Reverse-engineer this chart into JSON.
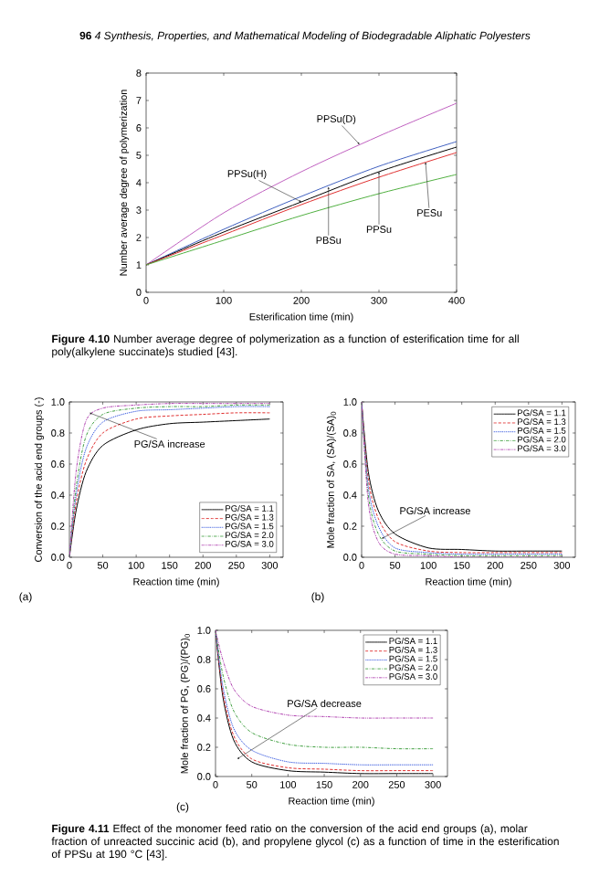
{
  "chart_data": [
    {
      "type": "line",
      "xlabel": "Esterification time (min)",
      "ylabel": "Number average degree of polymerization",
      "xlim": [
        0,
        400
      ],
      "ylim": [
        0,
        8
      ],
      "xticks": [
        0,
        100,
        200,
        300,
        400
      ],
      "yticks": [
        0,
        1,
        2,
        3,
        4,
        5,
        6,
        7,
        8
      ],
      "x": [
        0,
        100,
        200,
        300,
        400
      ],
      "series": [
        {
          "color": "#c060c0",
          "values": [
            1,
            2.9,
            4.4,
            5.7,
            6.9
          ]
        },
        {
          "color": "#4060c0",
          "values": [
            1,
            2.3,
            3.5,
            4.6,
            5.5
          ]
        },
        {
          "color": "#000000",
          "values": [
            1,
            2.2,
            3.3,
            4.4,
            5.3
          ]
        },
        {
          "color": "#e03030",
          "values": [
            1,
            2.1,
            3.2,
            4.2,
            5.1
          ]
        },
        {
          "color": "#50b040",
          "values": [
            1,
            1.9,
            2.8,
            3.6,
            4.3
          ]
        }
      ],
      "annotations": [
        "**96** *4 Synthesis, Properties, and Mathematical Modeling of Biodegradable Aliphatic Polyesters*",
        {
          "text": "PPSu(D)",
          "x": 275,
          "y": 5.4
        },
        {
          "text": "PPSu(H)",
          "x": 200,
          "y": 3.3
        },
        {
          "text": "PBSu",
          "x": 235,
          "y": 3.85
        },
        {
          "text": "PPSu",
          "x": 300,
          "y": 4.4
        },
        {
          "text": "PESu",
          "x": 360,
          "y": 4.75
        },
        "**Figure 4.10** Number average degree of polymerization as a function of esterification time for all poly(alkylene succinate)s studied [43]."
      ]
    },
    {
      "type": "line",
      "xlabel": "Reaction time (min)",
      "ylabel": "Conversion of the acid end groups (-)",
      "xlim": [
        0,
        320
      ],
      "ylim": [
        0,
        1
      ],
      "xticks": [
        0,
        50,
        100,
        150,
        200,
        250,
        300
      ],
      "yticks": [
        {
          "value": 0,
          "label": "0.0"
        },
        {
          "value": 0.2,
          "label": "0.2"
        },
        {
          "value": 0.4,
          "label": "0.4"
        },
        {
          "value": 0.6,
          "label": "0.6"
        },
        {
          "value": 0.8,
          "label": "0.8"
        },
        {
          "value": 1,
          "label": "1.0"
        }
      ],
      "legend": "bottom right",
      "x": [
        0,
        10,
        25,
        50,
        100,
        150,
        200,
        250,
        300
      ],
      "series": [
        {
          "name": "PG/SA = 1.1",
          "color": "#000000",
          "line_style": "solid",
          "values": [
            0,
            0.3,
            0.55,
            0.72,
            0.82,
            0.86,
            0.87,
            0.88,
            0.89
          ]
        },
        {
          "name": "PG/SA = 1.3",
          "color": "#e03030",
          "line_style": "dashed",
          "values": [
            0,
            0.35,
            0.62,
            0.8,
            0.89,
            0.91,
            0.92,
            0.93,
            0.93
          ]
        },
        {
          "name": "PG/SA = 1.5",
          "color": "#4060e0",
          "line_style": "dotted",
          "values": [
            0,
            0.4,
            0.7,
            0.87,
            0.94,
            0.95,
            0.96,
            0.97,
            0.97
          ]
        },
        {
          "name": "PG/SA = 2.0",
          "color": "#40a040",
          "line_style": "dashdot",
          "values": [
            0,
            0.45,
            0.78,
            0.92,
            0.96,
            0.97,
            0.97,
            0.98,
            0.98
          ]
        },
        {
          "name": "PG/SA = 3.0",
          "color": "#b040b0",
          "line_style": "dashdotdot",
          "values": [
            0,
            0.55,
            0.88,
            0.96,
            0.98,
            0.99,
            0.99,
            0.99,
            0.99
          ]
        }
      ],
      "annotations": [
        "(a)",
        {
          "text": "PG/SA increase",
          "x": 30,
          "y": 0.93
        }
      ]
    },
    {
      "type": "line",
      "xlabel": "Reaction time (min)",
      "ylabel": "Mole fraction of SA, (SA)/(SA)$_{0}$",
      "xlim": [
        0,
        320
      ],
      "ylim": [
        0,
        1
      ],
      "xticks": [
        0,
        50,
        100,
        150,
        200,
        250,
        300
      ],
      "yticks": [
        {
          "value": 0,
          "label": "0.0"
        },
        {
          "value": 0.2,
          "label": "0.2"
        },
        {
          "value": 0.4,
          "label": "0.4"
        },
        {
          "value": 0.6,
          "label": "0.6"
        },
        {
          "value": 0.8,
          "label": "0.8"
        },
        {
          "value": 1,
          "label": "1.0"
        }
      ],
      "legend": "top right",
      "x": [
        0,
        10,
        25,
        50,
        100,
        150,
        200,
        250,
        300
      ],
      "series": [
        {
          "name": "PG/SA = 1.1",
          "color": "#000000",
          "line_style": "solid",
          "values": [
            1,
            0.55,
            0.3,
            0.15,
            0.06,
            0.05,
            0.04,
            0.04,
            0.04
          ]
        },
        {
          "name": "PG/SA = 1.3",
          "color": "#e03030",
          "line_style": "dashed",
          "values": [
            1,
            0.5,
            0.25,
            0.1,
            0.04,
            0.03,
            0.03,
            0.03,
            0.03
          ]
        },
        {
          "name": "PG/SA = 1.5",
          "color": "#4060e0",
          "line_style": "dotted",
          "values": [
            1,
            0.45,
            0.2,
            0.06,
            0.03,
            0.02,
            0.02,
            0.02,
            0.02
          ]
        },
        {
          "name": "PG/SA = 2.0",
          "color": "#40a040",
          "line_style": "dashdot",
          "values": [
            1,
            0.4,
            0.15,
            0.04,
            0.02,
            0.01,
            0.01,
            0.01,
            0.01
          ]
        },
        {
          "name": "PG/SA = 3.0",
          "color": "#b040b0",
          "line_style": "dashdotdot",
          "values": [
            1,
            0.35,
            0.1,
            0.02,
            0.01,
            0,
            0,
            0,
            0
          ]
        }
      ],
      "annotations": [
        "(b)",
        {
          "text": "PG/SA increase",
          "x": 30,
          "y": 0.12
        }
      ]
    },
    {
      "type": "line",
      "xlabel": "Reaction time (min)",
      "ylabel": "Mole fraction of PG, (PG)/(PG)$_{0}$",
      "xlim": [
        0,
        320
      ],
      "ylim": [
        0,
        1
      ],
      "xticks": [
        0,
        50,
        100,
        150,
        200,
        250,
        300
      ],
      "yticks": [
        {
          "value": 0,
          "label": "0.0"
        },
        {
          "value": 0.2,
          "label": "0.2"
        },
        {
          "value": 0.4,
          "label": "0.4"
        },
        {
          "value": 0.6,
          "label": "0.6"
        },
        {
          "value": 0.8,
          "label": "0.8"
        },
        {
          "value": 1,
          "label": "1.0"
        }
      ],
      "legend": "top right",
      "x": [
        0,
        10,
        25,
        50,
        100,
        150,
        200,
        250,
        300
      ],
      "series": [
        {
          "name": "PG/SA = 1.1",
          "color": "#000000",
          "line_style": "solid",
          "values": [
            1,
            0.55,
            0.25,
            0.1,
            0.04,
            0.03,
            0.02,
            0.02,
            0.02
          ]
        },
        {
          "name": "PG/SA = 1.3",
          "color": "#e03030",
          "line_style": "dashed",
          "values": [
            1,
            0.58,
            0.28,
            0.12,
            0.06,
            0.05,
            0.04,
            0.04,
            0.04
          ]
        },
        {
          "name": "PG/SA = 1.5",
          "color": "#4060e0",
          "line_style": "dotted",
          "values": [
            1,
            0.62,
            0.33,
            0.18,
            0.1,
            0.09,
            0.08,
            0.08,
            0.08
          ]
        },
        {
          "name": "PG/SA = 2.0",
          "color": "#40a040",
          "line_style": "dashdot",
          "values": [
            1,
            0.7,
            0.45,
            0.3,
            0.22,
            0.2,
            0.2,
            0.19,
            0.19
          ]
        },
        {
          "name": "PG/SA = 3.0",
          "color": "#b040b0",
          "line_style": "dashdotdot",
          "values": [
            1,
            0.8,
            0.6,
            0.48,
            0.42,
            0.41,
            0.4,
            0.4,
            0.4
          ]
        }
      ],
      "annotations": [
        "(c)",
        {
          "text": "PG/SA decrease",
          "x": 30,
          "y": 0.12
        },
        "**Figure 4.11** Effect of the monomer feed ratio on the conversion of the acid end groups (a), molar fraction of unreacted succinic acid (b), and propylene glycol (c) as a function of time in the esterification of PPSu at 190 °C [43]."
      ]
    }
  ]
}
